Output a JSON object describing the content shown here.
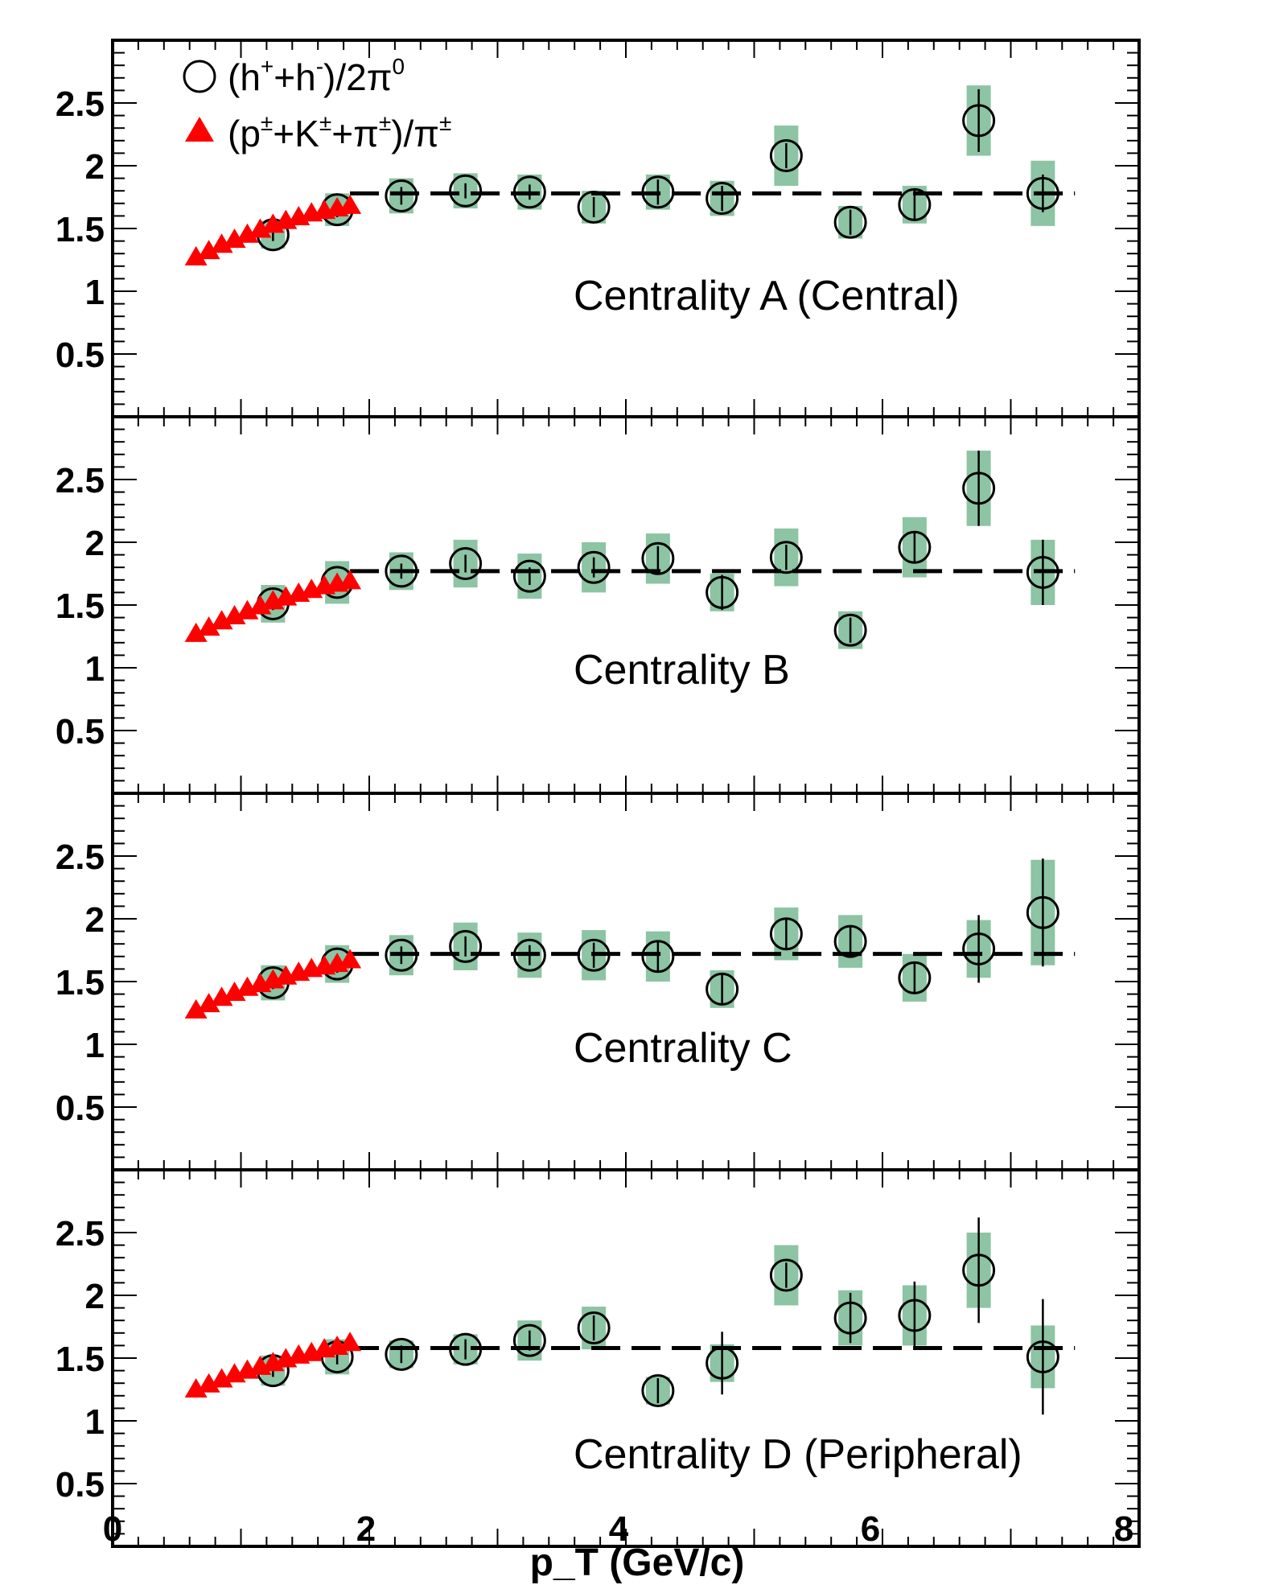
{
  "chart_data": {
    "type": "scatter",
    "xlabel": "p_T (GeV/c)",
    "xlim": [
      0,
      8
    ],
    "ylim": [
      0,
      3.0
    ],
    "x_ticks": [
      "0",
      "2",
      "4",
      "6",
      "8"
    ],
    "y_ticks": [
      "0.5",
      "1",
      "1.5",
      "2",
      "2.5"
    ],
    "legend": {
      "placement": "top-left",
      "entries": [
        {
          "marker": "open-circle",
          "label": "(h⁺+h⁻)/2π⁰",
          "base": "(h",
          "sup1": "+",
          "mid": "+h",
          "sup2": "-",
          "tail": ")/2π",
          "sup3": "0"
        },
        {
          "marker": "filled-triangle",
          "color": "#ff0000",
          "label": "(p±+K±+π±)/π±",
          "base": "(p",
          "sup1": "±",
          "mid": "+K",
          "sup2": "±",
          "tail": "+π",
          "sup3": "±",
          "tail2": ")/π",
          "sup4": "±"
        }
      ]
    },
    "colors": {
      "triangle": "#ff0000",
      "syst_band": "#8cc4a4",
      "circle": "#000000",
      "fit_line": "#000000"
    },
    "panels": [
      {
        "label": "Centrality A (Central)",
        "fit_level": 1.78,
        "triangles": {
          "x": [
            0.65,
            0.75,
            0.85,
            0.95,
            1.05,
            1.15,
            1.25,
            1.35,
            1.45,
            1.55,
            1.65,
            1.75,
            1.85
          ],
          "y": [
            1.27,
            1.32,
            1.37,
            1.41,
            1.45,
            1.49,
            1.53,
            1.56,
            1.59,
            1.62,
            1.64,
            1.66,
            1.68
          ]
        },
        "circles": {
          "x": [
            1.25,
            1.75,
            2.25,
            2.75,
            3.25,
            3.75,
            4.25,
            4.75,
            5.25,
            5.75,
            6.25,
            6.75,
            7.25
          ],
          "y": [
            1.45,
            1.65,
            1.76,
            1.8,
            1.79,
            1.67,
            1.79,
            1.74,
            2.08,
            1.55,
            1.69,
            2.36,
            1.78
          ],
          "stat": [
            0.05,
            0.06,
            0.07,
            0.06,
            0.06,
            0.08,
            0.1,
            0.1,
            0.1,
            0.1,
            0.12,
            0.25,
            0.15
          ],
          "syst": [
            0.11,
            0.13,
            0.14,
            0.14,
            0.14,
            0.13,
            0.14,
            0.14,
            0.24,
            0.13,
            0.15,
            0.28,
            0.26
          ]
        }
      },
      {
        "label": "Centrality B",
        "fit_level": 1.77,
        "triangles": {
          "x": [
            0.65,
            0.75,
            0.85,
            0.95,
            1.05,
            1.15,
            1.25,
            1.35,
            1.45,
            1.55,
            1.65,
            1.75,
            1.85
          ],
          "y": [
            1.27,
            1.32,
            1.37,
            1.41,
            1.45,
            1.49,
            1.53,
            1.56,
            1.59,
            1.62,
            1.65,
            1.67,
            1.69
          ]
        },
        "circles": {
          "x": [
            1.25,
            1.75,
            2.25,
            2.75,
            3.25,
            3.75,
            4.25,
            4.75,
            5.25,
            5.75,
            6.25,
            6.75,
            7.25
          ],
          "y": [
            1.51,
            1.68,
            1.77,
            1.83,
            1.73,
            1.8,
            1.87,
            1.6,
            1.88,
            1.3,
            1.96,
            2.43,
            1.76
          ],
          "stat": [
            0.05,
            0.06,
            0.06,
            0.07,
            0.07,
            0.08,
            0.1,
            0.14,
            0.1,
            0.1,
            0.12,
            0.3,
            0.26
          ],
          "syst": [
            0.15,
            0.17,
            0.15,
            0.19,
            0.18,
            0.2,
            0.2,
            0.15,
            0.23,
            0.15,
            0.24,
            0.3,
            0.26
          ]
        }
      },
      {
        "label": "Centrality C",
        "fit_level": 1.72,
        "triangles": {
          "x": [
            0.65,
            0.75,
            0.85,
            0.95,
            1.05,
            1.15,
            1.25,
            1.35,
            1.45,
            1.55,
            1.65,
            1.75,
            1.85
          ],
          "y": [
            1.27,
            1.32,
            1.37,
            1.41,
            1.45,
            1.48,
            1.51,
            1.54,
            1.57,
            1.6,
            1.62,
            1.64,
            1.67
          ]
        },
        "circles": {
          "x": [
            1.25,
            1.75,
            2.25,
            2.75,
            3.25,
            3.75,
            4.25,
            4.75,
            5.25,
            5.75,
            6.25,
            6.75,
            7.25
          ],
          "y": [
            1.49,
            1.64,
            1.71,
            1.78,
            1.71,
            1.71,
            1.7,
            1.44,
            1.88,
            1.82,
            1.53,
            1.76,
            2.05
          ],
          "stat": [
            0.05,
            0.07,
            0.07,
            0.08,
            0.08,
            0.1,
            0.12,
            0.12,
            0.12,
            0.12,
            0.12,
            0.27,
            0.43
          ],
          "syst": [
            0.14,
            0.15,
            0.16,
            0.19,
            0.18,
            0.2,
            0.2,
            0.15,
            0.21,
            0.21,
            0.19,
            0.23,
            0.42
          ]
        }
      },
      {
        "label": "Centrality D (Peripheral)",
        "fit_level": 1.58,
        "triangles": {
          "x": [
            0.65,
            0.75,
            0.85,
            0.95,
            1.05,
            1.15,
            1.25,
            1.35,
            1.45,
            1.55,
            1.65,
            1.75,
            1.85
          ],
          "y": [
            1.25,
            1.29,
            1.33,
            1.37,
            1.4,
            1.43,
            1.46,
            1.49,
            1.52,
            1.54,
            1.57,
            1.59,
            1.62
          ]
        },
        "circles": {
          "x": [
            1.25,
            1.75,
            2.25,
            2.75,
            3.25,
            3.75,
            4.25,
            4.75,
            5.25,
            5.75,
            6.25,
            6.75,
            7.25
          ],
          "y": [
            1.4,
            1.51,
            1.53,
            1.57,
            1.64,
            1.74,
            1.24,
            1.46,
            2.16,
            1.82,
            1.84,
            2.2,
            1.51
          ],
          "stat": [
            0.05,
            0.06,
            0.07,
            0.08,
            0.08,
            0.1,
            0.1,
            0.25,
            0.1,
            0.2,
            0.27,
            0.42,
            0.46
          ],
          "syst": [
            0.12,
            0.14,
            0.11,
            0.12,
            0.16,
            0.17,
            0.11,
            0.15,
            0.24,
            0.22,
            0.24,
            0.3,
            0.25
          ]
        }
      }
    ]
  }
}
